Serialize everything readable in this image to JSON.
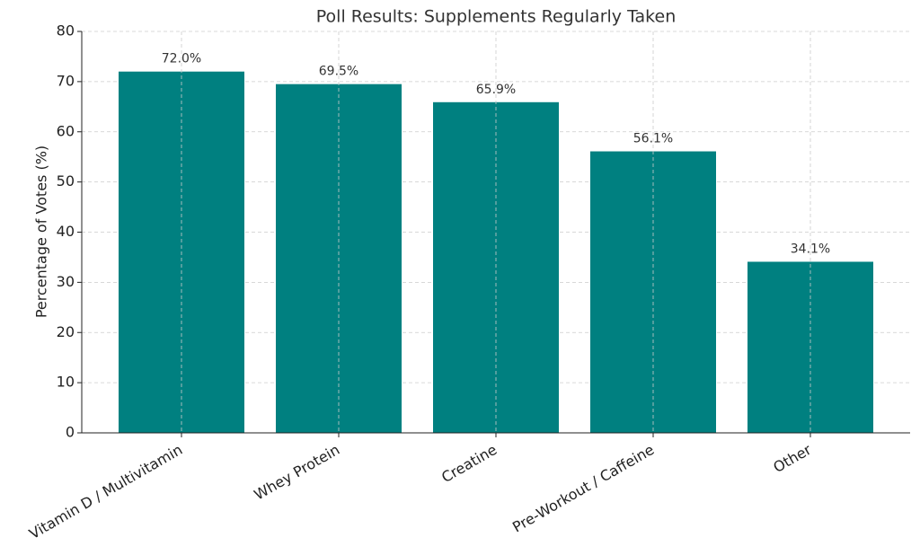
{
  "chart_data": {
    "type": "bar",
    "title": "Poll Results: Supplements Regularly Taken",
    "y_label": "Percentage of Votes (%)",
    "categories": [
      "Vitamin D / Multivitamin",
      "Whey Protein",
      "Creatine",
      "Pre-Workout / Caffeine",
      "Other"
    ],
    "values": [
      72.0,
      69.5,
      65.9,
      56.1,
      34.1
    ],
    "value_labels": [
      "72.0%",
      "69.5%",
      "65.9%",
      "56.1%",
      "34.1%"
    ],
    "color": "#008080",
    "ylim": [
      0,
      80
    ],
    "yticks": [
      0,
      10,
      20,
      30,
      40,
      50,
      60,
      70,
      80
    ],
    "grid": true
  }
}
